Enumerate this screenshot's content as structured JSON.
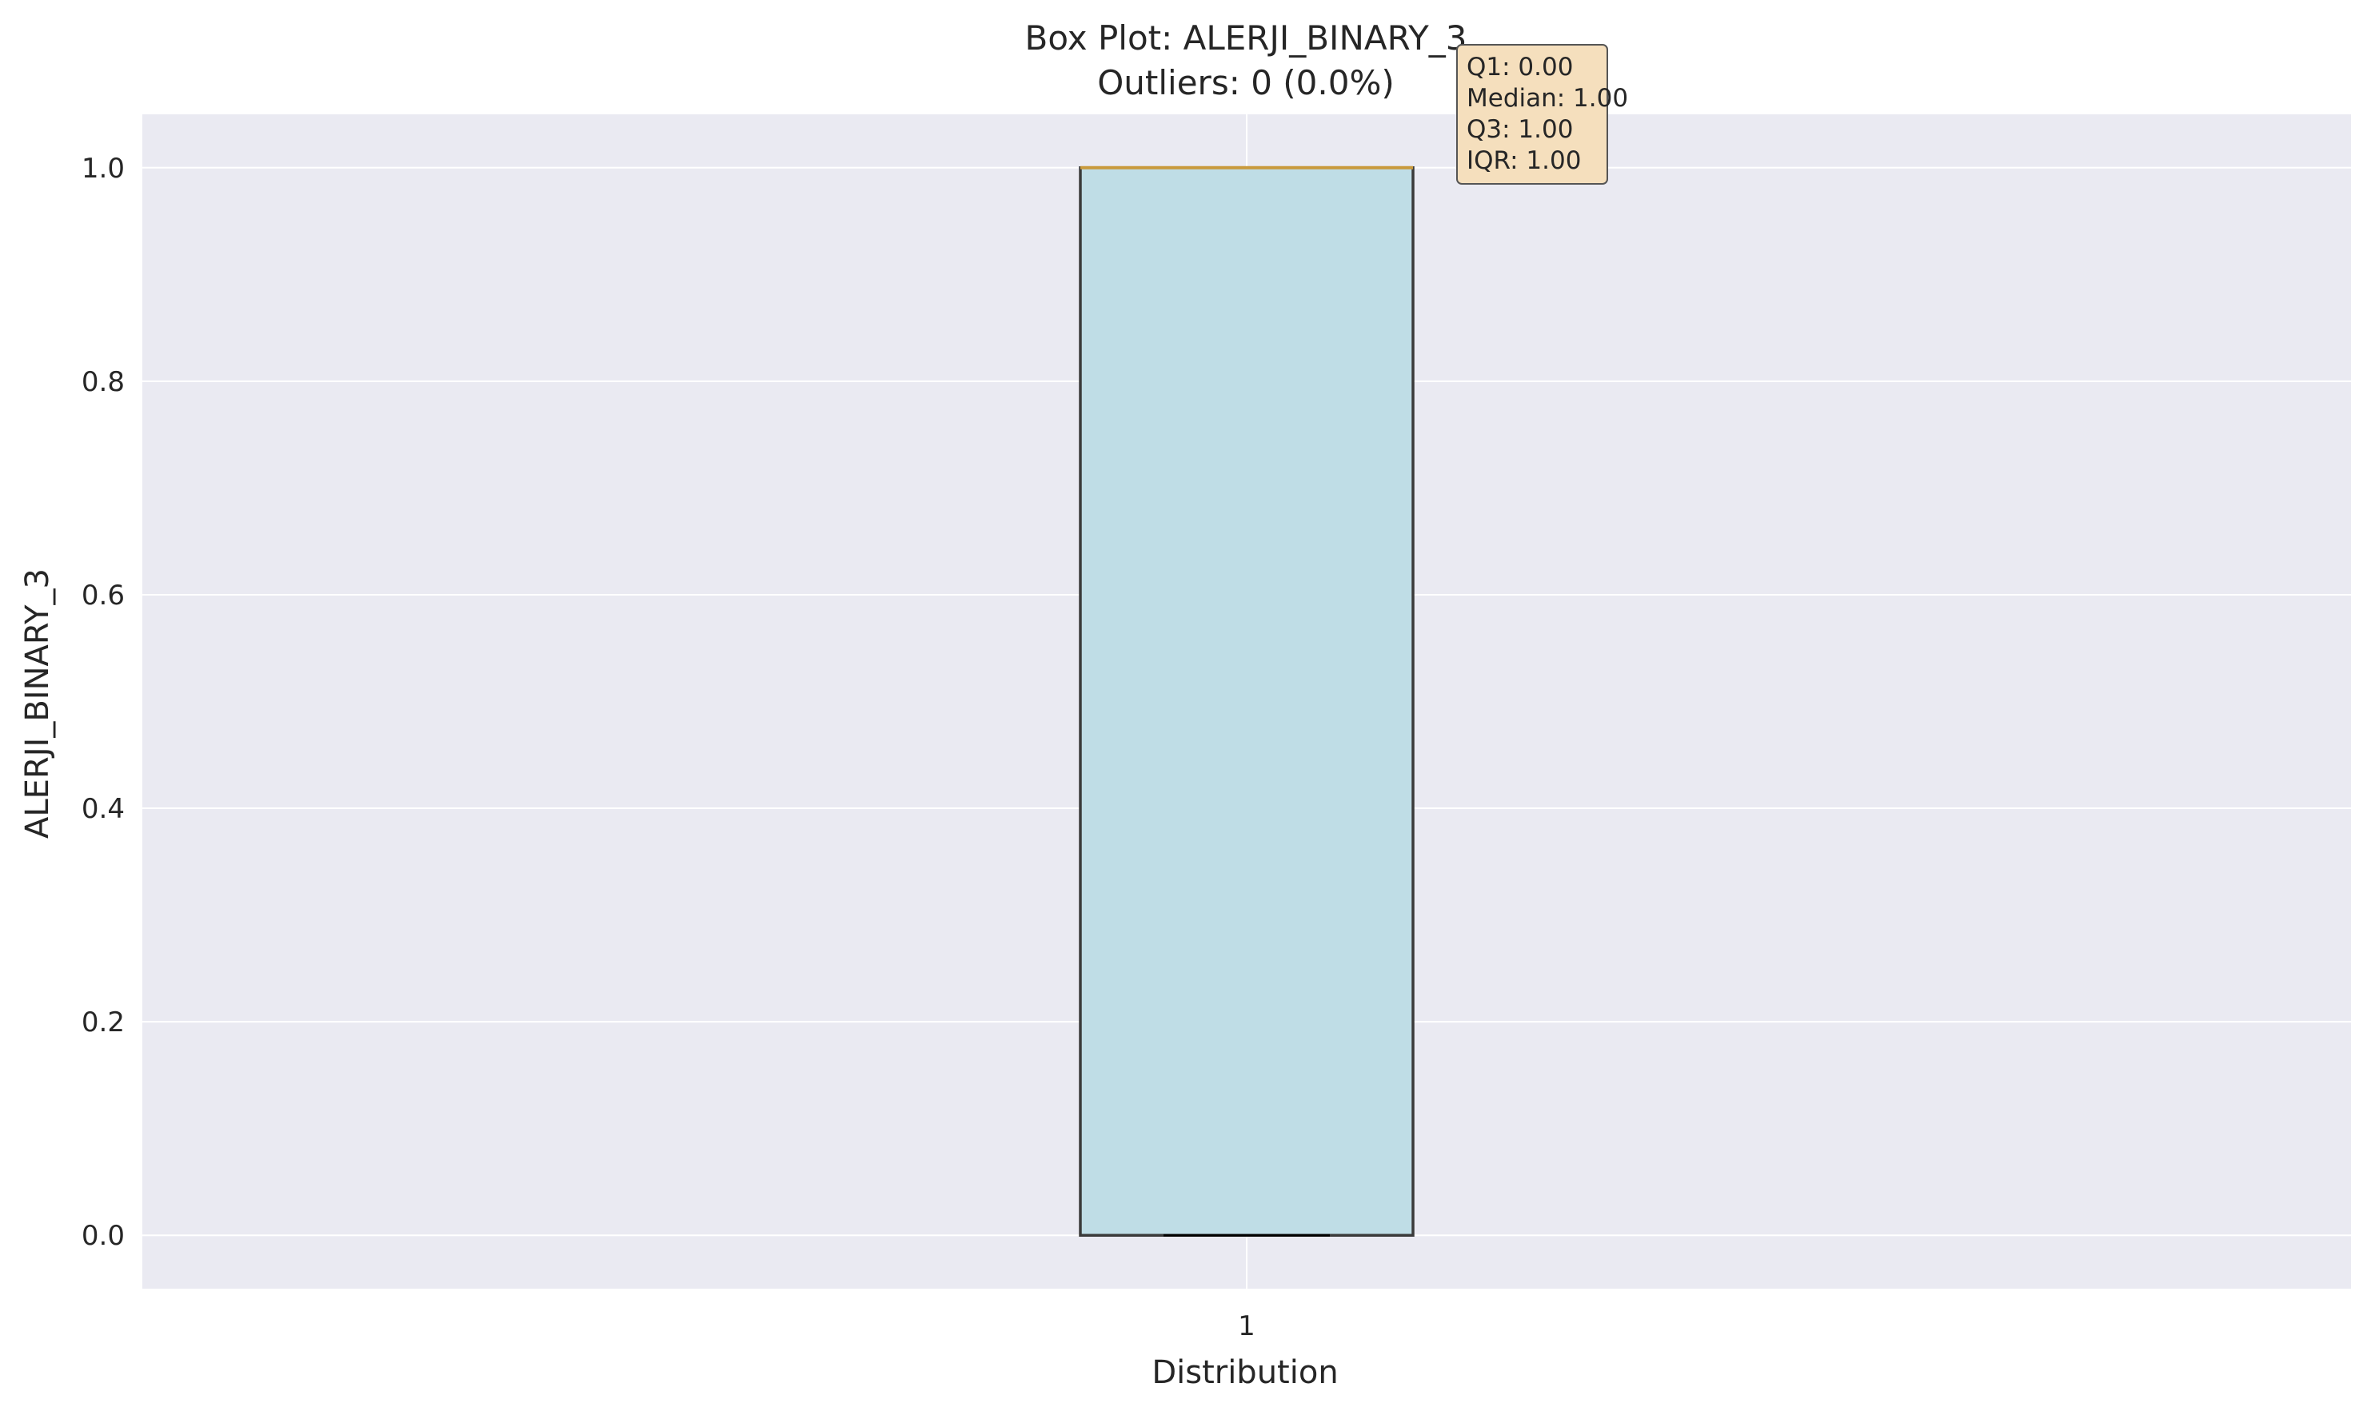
{
  "chart_data": {
    "type": "box",
    "title": "Box Plot: ALERJI_BINARY_3",
    "subtitle": "Outliers: 0 (0.0%)",
    "xlabel": "Distribution",
    "ylabel": "ALERJI_BINARY_3",
    "categories": [
      "1"
    ],
    "ylim": [
      -0.05,
      1.05
    ],
    "yticks": [
      0.0,
      0.2,
      0.4,
      0.6,
      0.8,
      1.0
    ],
    "ytick_labels": [
      "0.0",
      "0.2",
      "0.4",
      "0.6",
      "0.8",
      "1.0"
    ],
    "box": {
      "whisker_low": 0.0,
      "q1": 0.0,
      "median": 1.0,
      "q3": 1.0,
      "whisker_high": 1.0,
      "outliers": []
    },
    "stats_box_lines": [
      "Q1: 0.00",
      "Median: 1.00",
      "Q3: 1.00",
      "IQR: 1.00"
    ],
    "grid": true,
    "colors": {
      "plot_background": "#eaeaf2",
      "grid": "#ffffff",
      "box_fill": "#bfdde6",
      "box_edge": "#3a3a3a",
      "median_line": "#c99a3c",
      "whisker_cap": "#000000",
      "stats_box_fill": "#f5dfbd",
      "stats_box_edge": "#555555"
    }
  }
}
